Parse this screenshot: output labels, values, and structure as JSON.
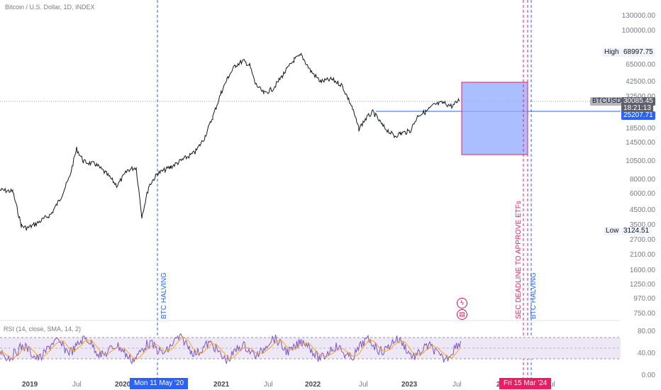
{
  "chart": {
    "title": "Bitcoin / U.S. Dollar, 1D, INDEX",
    "symbol_tag": "BTCUSD",
    "last_price": "30085.45",
    "countdown": "18:21:13",
    "level_line_value": "25207.71",
    "high_label": "High",
    "high_value": "68997.75",
    "low_label": "Low",
    "low_value": "3124.51",
    "colors": {
      "candle": "#131722",
      "blue_line": "#2962ff",
      "pink_line": "#e91e63",
      "box_fill": "#8fa8ff",
      "rsi_line": "#7e57c2",
      "rsi_band": "#ede7f6"
    }
  },
  "price_axis": [
    "130000.00",
    "100000.00",
    "65000.00",
    "42500.00",
    "32500.00",
    "18500.00",
    "14500.00",
    "10500.00",
    "8000.00",
    "6000.00",
    "4500.00",
    "3500.00",
    "2700.00",
    "2100.00",
    "1600.00",
    "1250.00",
    "970.00",
    "750.00"
  ],
  "annotations": {
    "halving_2020": "BTC HALVING",
    "sec_deadline": "SEC DEADLINE TO APPROVE ETFs",
    "halving_2024": "BTC HALVING"
  },
  "rsi": {
    "title": "RSI (14, close, SMA, 14, 2)",
    "axis": [
      "80.00",
      "40.00",
      "0.00"
    ]
  },
  "time_axis": {
    "ticks": [
      "2019",
      "Jul",
      "2020",
      "2021",
      "Jul",
      "2022",
      "Jul",
      "2023",
      "Jul",
      "2024",
      "Jul"
    ],
    "badge_left": "Mon 11 May '20",
    "badge_right": "Fri 15 Mar '24"
  },
  "icons": [
    "lightning-icon",
    "us-flag-icon"
  ]
}
